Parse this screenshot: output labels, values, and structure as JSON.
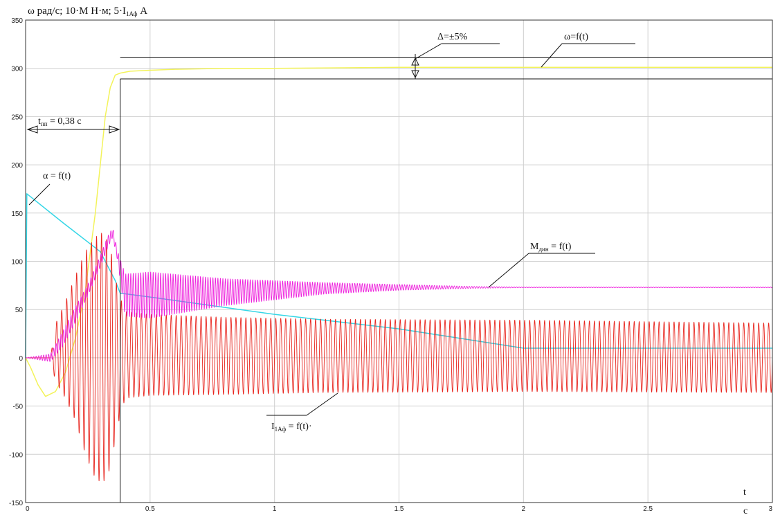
{
  "chart_data": {
    "type": "line",
    "title_parts": [
      "ω рад/с; 10·М Н·м; 5·I",
      "1Аф",
      " А"
    ],
    "xlabel": "t",
    "xunit": "c",
    "xlim": [
      0,
      3
    ],
    "ylim": [
      -150,
      350
    ],
    "x_ticks": [
      "0",
      "0.5",
      "1",
      "1.5",
      "2",
      "2.5",
      "3"
    ],
    "y_ticks": [
      "-150",
      "-100",
      "-50",
      "0",
      "50",
      "100",
      "150",
      "200",
      "250",
      "300",
      "350"
    ],
    "grid": true,
    "tolerance_band": [
      289,
      311
    ],
    "settling_time": 0.38,
    "annotations": {
      "settling_label_parts": [
        "t",
        "пп",
        " = 0,38 c"
      ],
      "tolerance": "Δ=±5%",
      "omega": "ω=f(t)",
      "alpha": "α = f(t)",
      "moment_parts": [
        "М",
        "дин",
        " = f(t)"
      ],
      "current_parts": [
        "I",
        "1Аф",
        " = f(t)·"
      ]
    },
    "series": [
      {
        "color": "#f3f35a",
        "x": [
          0,
          0.02,
          0.05,
          0.08,
          0.12,
          0.16,
          0.2,
          0.24,
          0.28,
          0.3,
          0.32,
          0.34,
          0.36,
          0.38,
          0.42,
          0.5,
          0.6,
          0.8,
          1.0,
          1.5,
          2.0,
          3.0
        ],
        "y": [
          0,
          -10,
          -28,
          -40,
          -35,
          -15,
          20,
          70,
          150,
          200,
          250,
          280,
          293,
          295,
          297,
          298,
          299,
          300,
          300,
          301,
          301,
          301
        ]
      },
      {
        "color": "#35d6e6",
        "x": [
          0,
          0.005,
          0.15,
          0.3,
          0.36,
          0.38,
          0.5,
          1.0,
          1.5,
          2.0,
          2.5,
          3.0
        ],
        "y": [
          0,
          170,
          140,
          110,
          80,
          67,
          63,
          45,
          30,
          10,
          10,
          10
        ]
      },
      {
        "color": "#e8251e",
        "osc": true,
        "freq": 50,
        "x": [
          0,
          0.1,
          0.12,
          0.16,
          0.2,
          0.24,
          0.28,
          0.31,
          0.34,
          0.37,
          0.4,
          0.5,
          0.8,
          1.2,
          2.0,
          3.0
        ],
        "center": [
          0,
          0,
          5,
          8,
          10,
          5,
          0,
          0,
          0,
          0,
          3,
          3,
          2,
          2,
          2,
          0
        ],
        "amp": [
          0,
          0,
          30,
          50,
          75,
          105,
          125,
          130,
          115,
          70,
          45,
          42,
          40,
          38,
          37,
          36
        ]
      },
      {
        "color": "#ee22dd",
        "osc": true,
        "freq": 100,
        "x": [
          0,
          0.1,
          0.15,
          0.2,
          0.25,
          0.3,
          0.33,
          0.35,
          0.37,
          0.4,
          0.5,
          0.8,
          1.0,
          1.2,
          1.5,
          1.8,
          2.0,
          3.0
        ],
        "center": [
          0,
          0,
          20,
          45,
          70,
          100,
          120,
          130,
          105,
          65,
          65,
          68,
          70,
          72,
          73,
          73,
          73,
          73
        ],
        "amp": [
          0,
          4,
          8,
          8,
          6,
          6,
          6,
          5,
          5,
          22,
          24,
          14,
          10,
          6,
          3,
          1,
          0.3,
          0.3
        ]
      }
    ]
  }
}
